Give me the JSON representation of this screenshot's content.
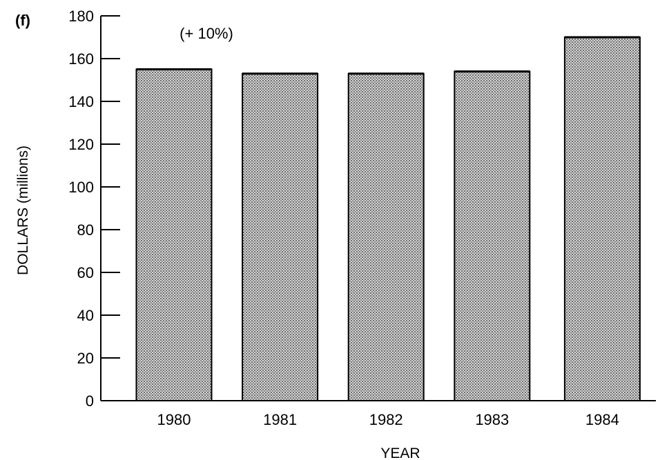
{
  "panel_label": "(f)",
  "chart_data": {
    "type": "bar",
    "categories": [
      "1980",
      "1981",
      "1982",
      "1983",
      "1984"
    ],
    "values": [
      155,
      153,
      153,
      154,
      170
    ],
    "title": "",
    "xlabel": "YEAR",
    "ylabel": "DOLLARS (millions)",
    "ylim": [
      0,
      180
    ],
    "yticks": [
      0,
      20,
      40,
      60,
      80,
      100,
      120,
      140,
      160,
      180
    ],
    "annotations": [
      {
        "text": "(+ 10%)",
        "x": "1980",
        "y": 172
      }
    ],
    "grid": false,
    "legend": "none",
    "bar_fill": "#a9a9a9",
    "bar_edge": "#000000"
  }
}
